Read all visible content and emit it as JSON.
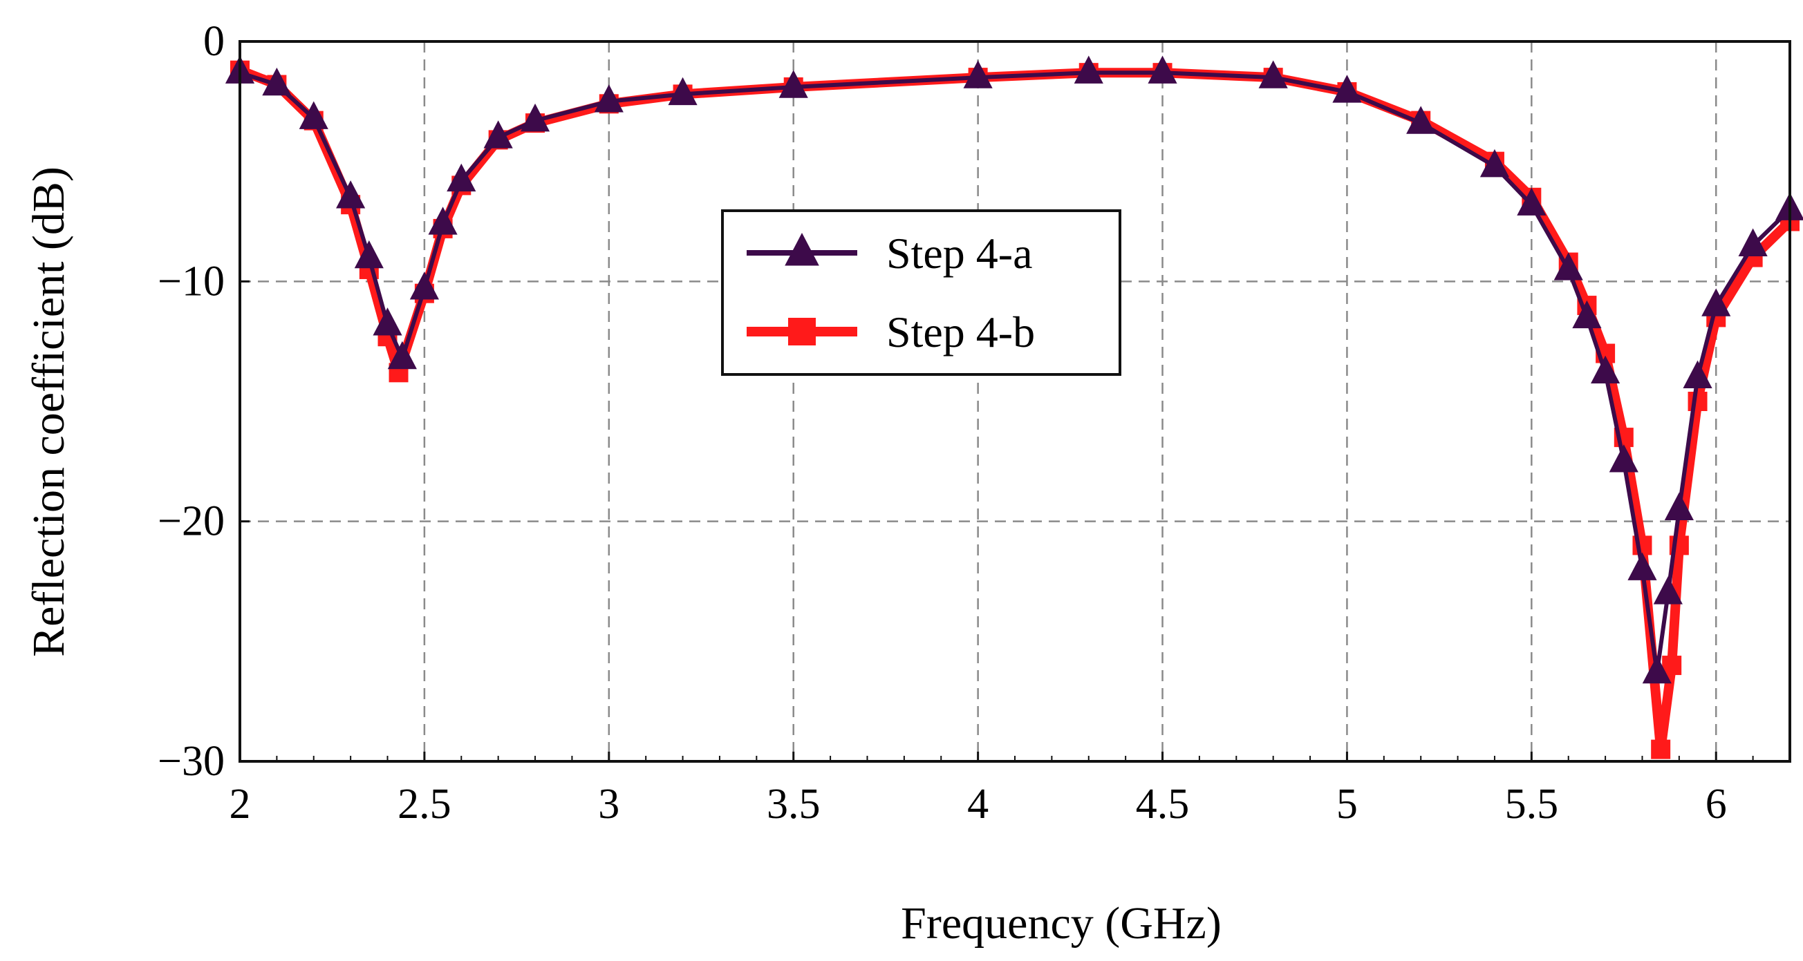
{
  "chart_data": {
    "type": "line",
    "title": "",
    "xlabel": "Frequency (GHz)",
    "ylabel": "Reflection coefficient (dB)",
    "xlim": [
      2,
      6.2
    ],
    "ylim": [
      -30,
      0
    ],
    "xticks": [
      2,
      2.5,
      3,
      3.5,
      4,
      4.5,
      5,
      5.5,
      6
    ],
    "xtick_labels": [
      "2",
      "2.5",
      "3",
      "3.5",
      "4",
      "4.5",
      "5",
      "5.5",
      "6"
    ],
    "yticks": [
      0,
      -10,
      -20,
      -30
    ],
    "ytick_labels": [
      "0",
      "−10",
      "−20",
      "−30"
    ],
    "grid": true,
    "legend_position": "center",
    "series": [
      {
        "name": "Step 4-a",
        "color": "#3d0a4a",
        "marker": "triangle",
        "x": [
          2.0,
          2.1,
          2.2,
          2.3,
          2.35,
          2.4,
          2.44,
          2.5,
          2.55,
          2.6,
          2.7,
          2.8,
          3.0,
          3.2,
          3.5,
          4.0,
          4.3,
          4.5,
          4.8,
          5.0,
          5.2,
          5.4,
          5.5,
          5.6,
          5.65,
          5.7,
          5.75,
          5.8,
          5.84,
          5.87,
          5.9,
          5.95,
          6.0,
          6.1,
          6.2
        ],
        "y": [
          -1.3,
          -1.8,
          -3.2,
          -6.5,
          -9.0,
          -11.8,
          -13.2,
          -10.3,
          -7.6,
          -5.8,
          -4.0,
          -3.3,
          -2.5,
          -2.2,
          -1.9,
          -1.5,
          -1.3,
          -1.3,
          -1.5,
          -2.1,
          -3.4,
          -5.2,
          -6.8,
          -9.5,
          -11.5,
          -13.8,
          -17.5,
          -22.0,
          -26.3,
          -23.0,
          -19.5,
          -14.0,
          -11.0,
          -8.5,
          -7.0
        ]
      },
      {
        "name": "Step 4-b",
        "color": "#ff1a1a",
        "marker": "square",
        "x": [
          2.0,
          2.1,
          2.2,
          2.3,
          2.35,
          2.4,
          2.43,
          2.5,
          2.55,
          2.6,
          2.7,
          2.8,
          3.0,
          3.2,
          3.5,
          4.0,
          4.3,
          4.5,
          4.8,
          5.0,
          5.2,
          5.4,
          5.5,
          5.6,
          5.65,
          5.7,
          5.75,
          5.8,
          5.85,
          5.88,
          5.9,
          5.95,
          6.0,
          6.1,
          6.2
        ],
        "y": [
          -1.2,
          -1.8,
          -3.3,
          -6.8,
          -9.5,
          -12.3,
          -13.8,
          -10.5,
          -7.8,
          -6.0,
          -4.1,
          -3.4,
          -2.6,
          -2.2,
          -1.9,
          -1.5,
          -1.3,
          -1.3,
          -1.5,
          -2.1,
          -3.3,
          -5.0,
          -6.5,
          -9.2,
          -11.0,
          -13.0,
          -16.5,
          -21.0,
          -29.5,
          -26.0,
          -21.0,
          -15.0,
          -11.5,
          -9.0,
          -7.5
        ]
      }
    ]
  }
}
